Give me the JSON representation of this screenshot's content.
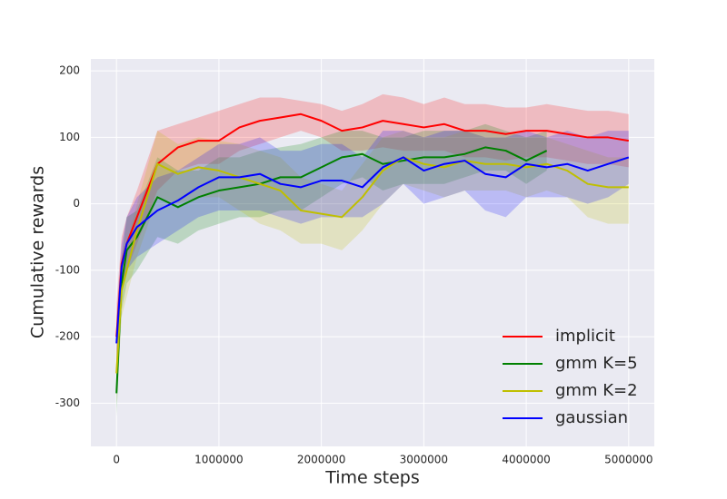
{
  "chart_data": {
    "type": "line",
    "xlabel": "Time steps",
    "ylabel": "Cumulative rewards",
    "x": [
      0,
      50000,
      100000,
      200000,
      400000,
      600000,
      800000,
      1000000,
      1200000,
      1400000,
      1600000,
      1800000,
      2000000,
      2200000,
      2400000,
      2600000,
      2800000,
      3000000,
      3200000,
      3400000,
      3600000,
      3800000,
      4000000,
      4200000,
      4400000,
      4600000,
      4800000,
      5000000
    ],
    "series": [
      {
        "name": "implicit",
        "color": "#ff0000",
        "values": [
          -200,
          -90,
          -60,
          -20,
          60,
          85,
          95,
          95,
          115,
          125,
          130,
          135,
          125,
          110,
          115,
          125,
          120,
          115,
          120,
          110,
          110,
          105,
          110,
          110,
          105,
          100,
          100,
          95
        ],
        "upper": [
          -150,
          -50,
          -20,
          20,
          110,
          120,
          130,
          140,
          150,
          160,
          160,
          155,
          150,
          140,
          150,
          165,
          160,
          150,
          160,
          150,
          150,
          145,
          145,
          150,
          145,
          140,
          140,
          135
        ],
        "lower": [
          -250,
          -130,
          -100,
          -60,
          20,
          50,
          60,
          60,
          80,
          90,
          100,
          110,
          100,
          80,
          80,
          85,
          80,
          80,
          80,
          70,
          70,
          65,
          70,
          70,
          65,
          60,
          60,
          55
        ]
      },
      {
        "name": "gmm K=5",
        "color": "#008000",
        "values": [
          -285,
          -120,
          -70,
          -50,
          10,
          -5,
          10,
          20,
          25,
          30,
          40,
          40,
          55,
          70,
          75,
          60,
          65,
          70,
          70,
          75,
          85,
          80,
          65,
          80,
          null,
          null,
          null,
          null
        ],
        "upper": [
          -250,
          -80,
          -20,
          -10,
          70,
          50,
          50,
          70,
          70,
          80,
          85,
          90,
          100,
          110,
          110,
          100,
          100,
          110,
          110,
          110,
          120,
          110,
          100,
          110,
          null,
          null,
          null,
          null
        ],
        "lower": [
          -320,
          -160,
          -120,
          -100,
          -50,
          -60,
          -40,
          -30,
          -20,
          -20,
          -10,
          -10,
          10,
          30,
          40,
          20,
          30,
          30,
          30,
          40,
          50,
          50,
          30,
          50,
          null,
          null,
          null,
          null
        ]
      },
      {
        "name": "gmm K=2",
        "color": "#bfbf00",
        "values": [
          -255,
          -130,
          -100,
          -40,
          60,
          45,
          55,
          50,
          40,
          30,
          20,
          -10,
          -15,
          -20,
          10,
          50,
          70,
          60,
          55,
          65,
          60,
          60,
          55,
          60,
          50,
          30,
          25,
          25
        ],
        "upper": [
          -220,
          -90,
          -60,
          0,
          110,
          90,
          100,
          95,
          90,
          80,
          70,
          40,
          30,
          20,
          60,
          100,
          110,
          100,
          100,
          110,
          100,
          100,
          100,
          100,
          90,
          80,
          70,
          70
        ],
        "lower": [
          -300,
          -170,
          -140,
          -80,
          10,
          0,
          10,
          10,
          -10,
          -30,
          -40,
          -60,
          -60,
          -70,
          -40,
          0,
          30,
          20,
          10,
          20,
          20,
          20,
          10,
          20,
          10,
          -20,
          -30,
          -30
        ]
      },
      {
        "name": "gaussian",
        "color": "#0000ff",
        "values": [
          -210,
          -95,
          -60,
          -35,
          -10,
          5,
          25,
          40,
          40,
          45,
          30,
          25,
          35,
          35,
          25,
          55,
          70,
          50,
          60,
          65,
          45,
          40,
          60,
          55,
          60,
          50,
          60,
          70
        ],
        "upper": [
          -170,
          -60,
          -20,
          10,
          40,
          50,
          70,
          90,
          90,
          100,
          80,
          80,
          90,
          90,
          70,
          110,
          110,
          100,
          110,
          110,
          100,
          100,
          110,
          100,
          110,
          100,
          110,
          110
        ],
        "lower": [
          -250,
          -130,
          -100,
          -80,
          -60,
          -40,
          -20,
          -10,
          -10,
          -10,
          -20,
          -30,
          -20,
          -20,
          -20,
          0,
          30,
          0,
          10,
          20,
          -10,
          -20,
          10,
          10,
          10,
          0,
          10,
          30
        ]
      }
    ],
    "xlim": [
      -250000,
      5250000
    ],
    "ylim": [
      -365,
      218
    ],
    "xticks": [
      0,
      1000000,
      2000000,
      3000000,
      4000000,
      5000000
    ],
    "yticks": [
      -300,
      -200,
      -100,
      0,
      100,
      200
    ],
    "grid": true,
    "legend": "lower right"
  }
}
